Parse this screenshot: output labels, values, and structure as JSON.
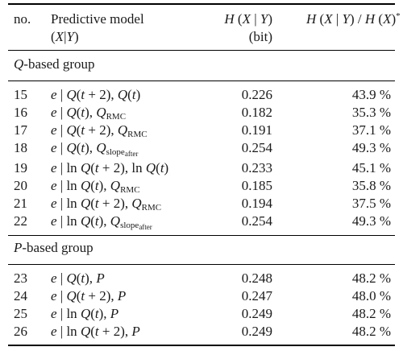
{
  "header": {
    "col_no": "no.",
    "col_model_line1": "Predictive model",
    "col_model_line2": "(X|Y)",
    "col_h_line1": "H (X | Y)",
    "col_h_line2": "(bit)",
    "col_ratio": "H (X | Y) / H (X)*"
  },
  "groups": [
    {
      "title": "Q-based group",
      "rows": [
        {
          "no": "15",
          "model": "e | Q(t + 2), Q(t)",
          "h": "0.226",
          "ratio": "43.9 %"
        },
        {
          "no": "16",
          "model": "e | Q(t), QRMC",
          "h": "0.182",
          "ratio": "35.3 %"
        },
        {
          "no": "17",
          "model": "e | Q(t + 2), QRMC",
          "h": "0.191",
          "ratio": "37.1 %"
        },
        {
          "no": "18",
          "model": "e | Q(t), Qslopeafter",
          "h": "0.254",
          "ratio": "49.3 %"
        },
        {
          "no": "19",
          "model": "e | ln Q(t + 2), ln Q(t)",
          "h": "0.233",
          "ratio": "45.1 %"
        },
        {
          "no": "20",
          "model": "e | ln Q(t), QRMC",
          "h": "0.185",
          "ratio": "35.8 %"
        },
        {
          "no": "21",
          "model": "e | ln Q(t + 2), QRMC",
          "h": "0.194",
          "ratio": "37.5 %"
        },
        {
          "no": "22",
          "model": "e | ln Q(t), Qslopeafter",
          "h": "0.254",
          "ratio": "49.3 %"
        }
      ]
    },
    {
      "title": "P-based group",
      "rows": [
        {
          "no": "23",
          "model": "e | Q(t), P",
          "h": "0.248",
          "ratio": "48.2 %"
        },
        {
          "no": "24",
          "model": "e | Q(t + 2), P",
          "h": "0.247",
          "ratio": "48.0 %"
        },
        {
          "no": "25",
          "model": "e | ln Q(t), P",
          "h": "0.249",
          "ratio": "48.2 %"
        },
        {
          "no": "26",
          "model": "e | ln Q(t + 2), P",
          "h": "0.249",
          "ratio": "48.2 %"
        }
      ]
    }
  ]
}
